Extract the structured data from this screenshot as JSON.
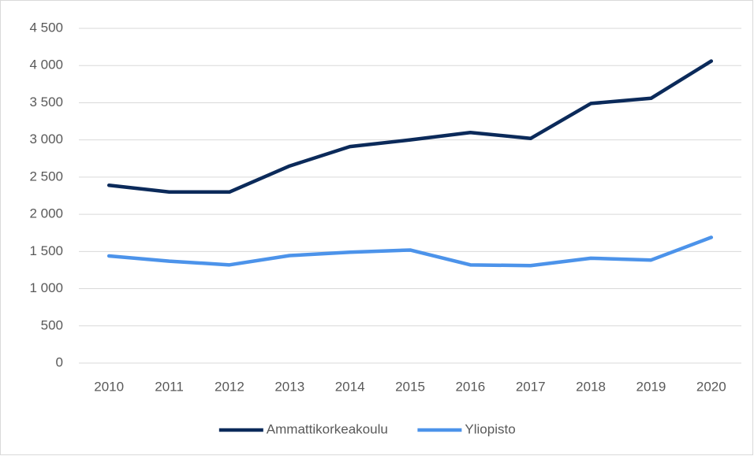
{
  "chart_data": {
    "type": "line",
    "categories": [
      "2010",
      "2011",
      "2012",
      "2013",
      "2014",
      "2015",
      "2016",
      "2017",
      "2018",
      "2019",
      "2020"
    ],
    "series": [
      {
        "name": "Ammattikorkeakoulu",
        "color": "#0b2a5a",
        "values": [
          2390,
          2300,
          2300,
          2650,
          2910,
          3000,
          3100,
          3020,
          3490,
          3560,
          4060
        ]
      },
      {
        "name": "Yliopisto",
        "color": "#4c93ea",
        "values": [
          1440,
          1370,
          1320,
          1445,
          1490,
          1520,
          1320,
          1310,
          1410,
          1385,
          1690
        ]
      }
    ],
    "ylim": [
      0,
      4500
    ],
    "yticks": [
      0,
      500,
      {
        "value": 1000,
        "label": "1 000"
      },
      {
        "value": 1500,
        "label": "1 500"
      },
      {
        "value": 2000,
        "label": "2 000"
      },
      {
        "value": 2500,
        "label": "2 500"
      },
      {
        "value": 3000,
        "label": "3 000"
      },
      {
        "value": 3500,
        "label": "3 500"
      },
      {
        "value": 4000,
        "label": "4 000"
      },
      {
        "value": 4500,
        "label": "4 500"
      }
    ],
    "grid": true,
    "legend": "bottom"
  }
}
